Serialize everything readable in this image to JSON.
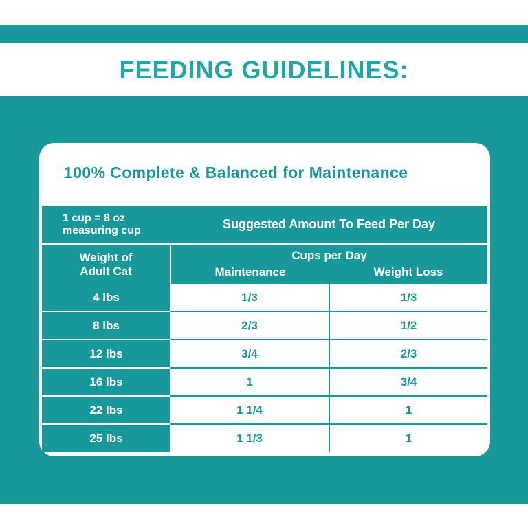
{
  "title": "FEEDING GUIDELINES:",
  "heading": "100% Complete & Balanced for Maintenance",
  "table": {
    "cup_note_line1": "1 cup = 8 oz",
    "cup_note_line2": "measuring cup",
    "suggested_header": "Suggested Amount To Feed Per Day",
    "weight_header_line1": "Weight of",
    "weight_header_line2": "Adult Cat",
    "cups_per_day": "Cups per Day",
    "maintenance_header": "Maintenance",
    "weight_loss_header": "Weight Loss",
    "rows": [
      {
        "weight": "4 lbs",
        "maintenance": "1/3",
        "weight_loss": "1/3"
      },
      {
        "weight": "8 lbs",
        "maintenance": "2/3",
        "weight_loss": "1/2"
      },
      {
        "weight": "12 lbs",
        "maintenance": "3/4",
        "weight_loss": "2/3"
      },
      {
        "weight": "16 lbs",
        "maintenance": "1",
        "weight_loss": "3/4"
      },
      {
        "weight": "22 lbs",
        "maintenance": "1 1/4",
        "weight_loss": "1"
      },
      {
        "weight": "25 lbs",
        "maintenance": "1 1/3",
        "weight_loss": "1"
      }
    ]
  },
  "colors": {
    "teal": "#18989b",
    "title_teal": "#1fa8a7",
    "white": "#ffffff"
  }
}
